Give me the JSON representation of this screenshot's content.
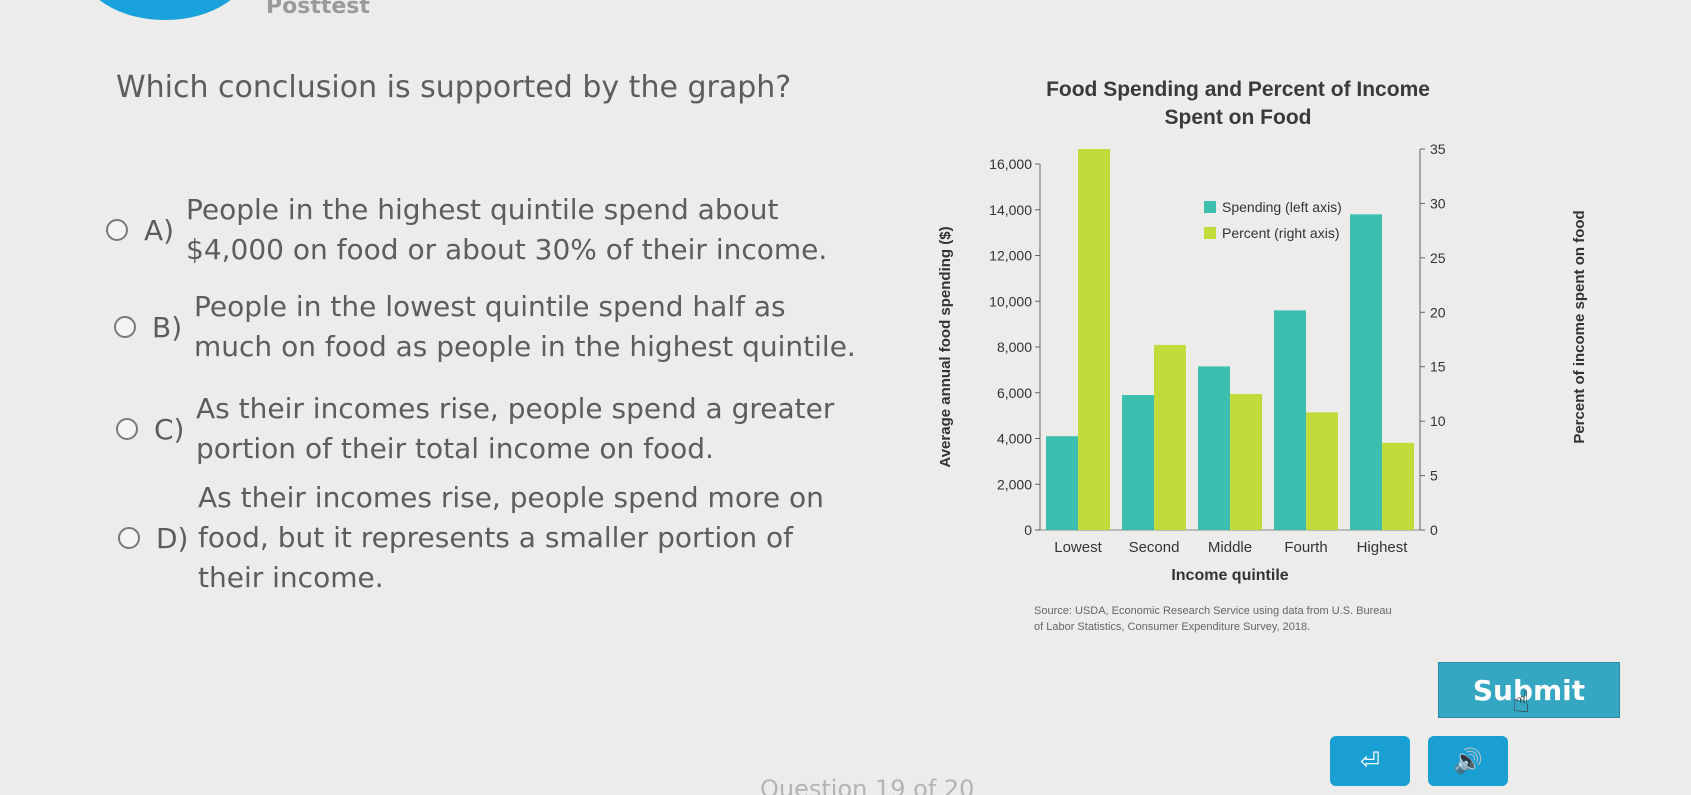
{
  "header": {
    "title": "Posttest"
  },
  "question": "Which conclusion is supported by the graph?",
  "options": [
    {
      "letter": "A)",
      "lines": [
        "People in the highest quintile spend about",
        "$4,000 on food or about 30% of their income."
      ]
    },
    {
      "letter": "B)",
      "lines": [
        "People in the lowest quintile spend half as",
        "much on food as people in the highest quintile."
      ]
    },
    {
      "letter": "C)",
      "lines": [
        "As their incomes rise, people spend a greater",
        "portion of their total income on food."
      ]
    },
    {
      "letter": "D)",
      "lines": [
        "As their incomes rise, people spend more on",
        "food, but it represents a smaller portion of",
        "their income."
      ]
    }
  ],
  "chart_data": {
    "type": "bar",
    "title": "Food Spending and Percent of Income Spent on Food",
    "title_lines": [
      "Food Spending and Percent of Income",
      "Spent on Food"
    ],
    "xlabel": "Income quintile",
    "ylabel_left": "Average annual food spending ($)",
    "ylabel_right": "Percent of income spent on food",
    "categories": [
      "Lowest",
      "Second",
      "Middle",
      "Fourth",
      "Highest"
    ],
    "series": [
      {
        "name": "Spending (left axis)",
        "axis": "left",
        "color": "#3dbfb0",
        "values": [
          4100,
          5900,
          7150,
          9600,
          13800
        ]
      },
      {
        "name": "Percent (right axis)",
        "axis": "right",
        "color": "#c3db3a",
        "values": [
          35,
          17,
          12.5,
          10.8,
          8
        ]
      }
    ],
    "ylim_left": [
      0,
      16000
    ],
    "yticks_left": [
      "0",
      "2,000",
      "4,000",
      "6,000",
      "8,000",
      "10,000",
      "12,000",
      "14,000",
      "16,000"
    ],
    "ylim_right": [
      0,
      35
    ],
    "yticks_right": [
      "0",
      "5",
      "10",
      "15",
      "20",
      "25",
      "30",
      "35"
    ],
    "legend_position": "top-right",
    "source_lines": [
      "Source: USDA, Economic Research Service using data from U.S. Bureau",
      "of Labor Statistics, Consumer Expenditure Survey, 2018."
    ]
  },
  "buttons": {
    "submit": "Submit",
    "exit_icon": "exit-icon",
    "audio_icon": "speaker-icon"
  },
  "footer": {
    "question_counter": "Question 19 of 20"
  },
  "colors": {
    "accent": "#1aa2dc",
    "submit": "#35a7c2",
    "teal": "#3dbfb0",
    "lime": "#c3db3a"
  }
}
